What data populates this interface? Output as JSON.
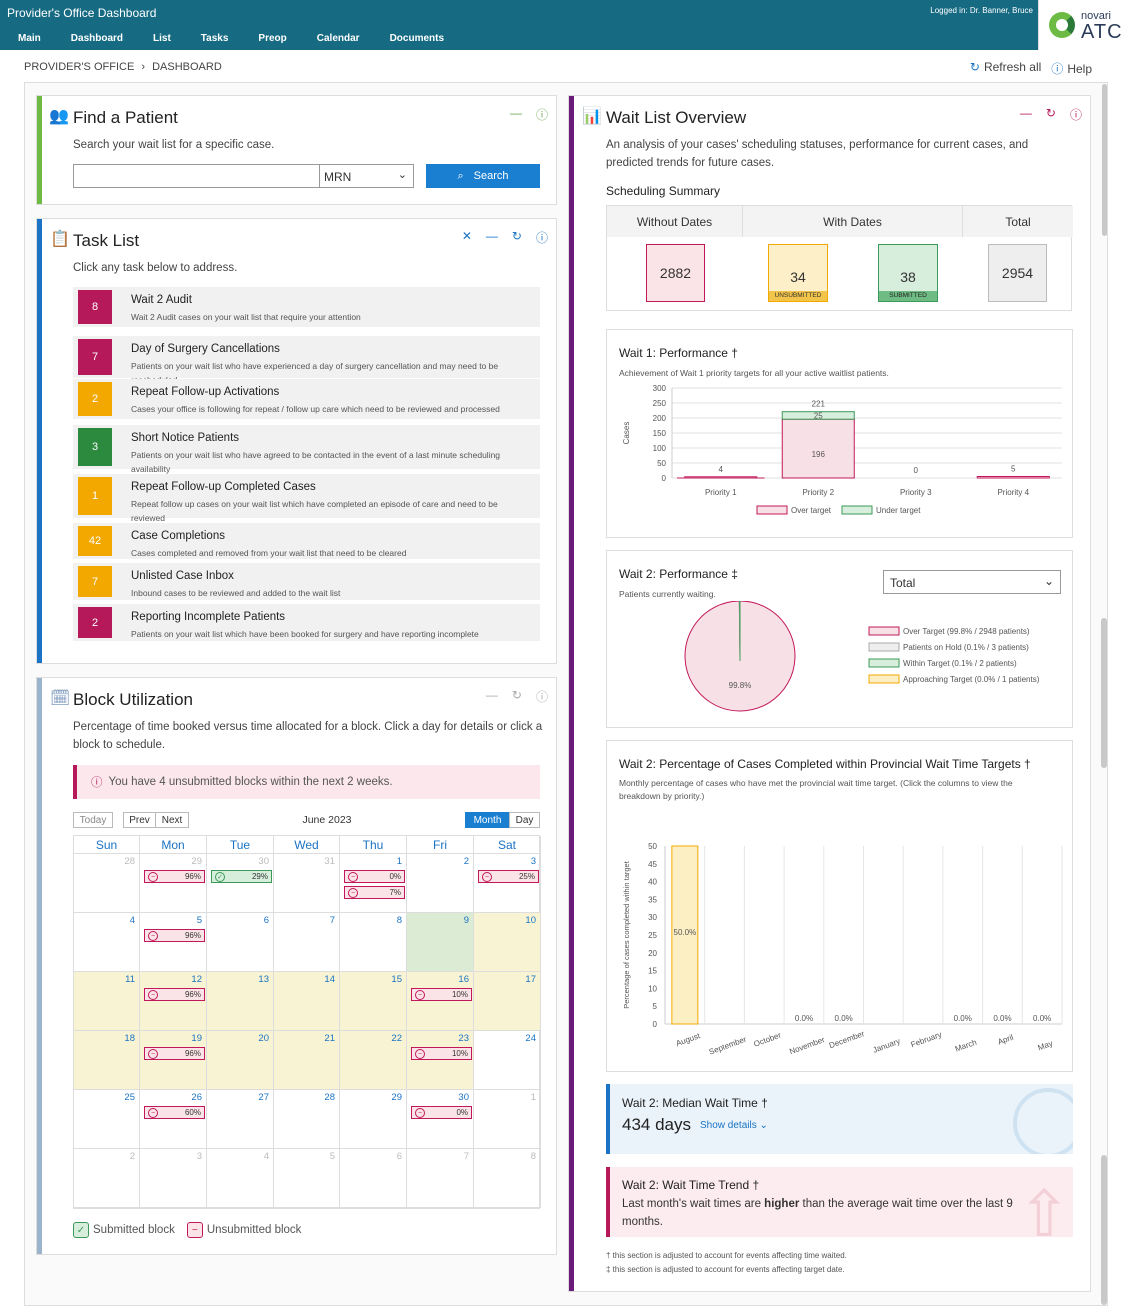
{
  "header": {
    "app_title": "Provider's Office Dashboard",
    "login_text": "Logged in: Dr. Banner, Bruce",
    "nav": [
      "Main",
      "Dashboard",
      "List",
      "Tasks",
      "Preop",
      "Calendar",
      "Documents"
    ],
    "logo_top": "novari",
    "logo_bottom": "ATC"
  },
  "breadcrumb": {
    "office": "PROVIDER'S OFFICE",
    "page": "DASHBOARD"
  },
  "top_actions": {
    "refresh": "Refresh all",
    "help": "Help"
  },
  "find_patient": {
    "title": "Find a Patient",
    "desc": "Search your wait list for a specific case.",
    "search_value": "",
    "id_type": "MRN",
    "search_label": "Search"
  },
  "task_list": {
    "title": "Task List",
    "desc": "Click any task below to address.",
    "tasks": [
      {
        "count": "8",
        "title": "Wait 2 Audit",
        "desc": "Wait 2 Audit cases on your wait list that require your attention",
        "color": "#b5195a"
      },
      {
        "count": "7",
        "title": "Day of Surgery Cancellations",
        "desc": "Patients on your wait list who have experienced a day of surgery cancellation and may need to be rescheduled",
        "color": "#b5195a"
      },
      {
        "count": "2",
        "title": "Repeat Follow-up Activations",
        "desc": "Cases your office is following for repeat / follow up care which need to be reviewed and processed",
        "color": "#f3a800"
      },
      {
        "count": "3",
        "title": "Short Notice Patients",
        "desc": "Patients on your wait list who have agreed to be contacted in the event of a last minute scheduling availability",
        "color": "#2b8a3e"
      },
      {
        "count": "1",
        "title": "Repeat Follow-up Completed Cases",
        "desc": "Repeat follow up cases on your wait list which have completed an episode of care and need to be reviewed",
        "color": "#f3a800"
      },
      {
        "count": "42",
        "title": "Case Completions",
        "desc": "Cases completed and removed from your wait list that need to be cleared",
        "color": "#f3a800"
      },
      {
        "count": "7",
        "title": "Unlisted Case Inbox",
        "desc": "Inbound cases to be reviewed and added to the wait list",
        "color": "#f3a800"
      },
      {
        "count": "2",
        "title": "Reporting Incomplete Patients",
        "desc": "Patients on your wait list which have been booked for surgery and have reporting incomplete",
        "color": "#b5195a"
      }
    ]
  },
  "block_util": {
    "title": "Block Utilization",
    "desc": "Percentage of time booked versus time allocated for a block. Click a day for details or click a block to schedule.",
    "alert": "You have 4 unsubmitted blocks within the next 2 weeks.",
    "today": "Today",
    "prev": "Prev",
    "next": "Next",
    "month_label": "June 2023",
    "view_month": "Month",
    "view_day": "Day",
    "dow": [
      "Sun",
      "Mon",
      "Tue",
      "Wed",
      "Thu",
      "Fri",
      "Sat"
    ],
    "weeks": [
      [
        {
          "d": "28",
          "m": true
        },
        {
          "d": "29",
          "m": true,
          "b": [
            [
              "un",
              "96%"
            ]
          ]
        },
        {
          "d": "30",
          "m": true,
          "b": [
            [
              "su",
              "29%"
            ]
          ]
        },
        {
          "d": "31",
          "m": true
        },
        {
          "d": "1",
          "b": [
            [
              "un",
              "0%"
            ],
            [
              "un",
              "7%"
            ]
          ]
        },
        {
          "d": "2"
        },
        {
          "d": "3",
          "b": [
            [
              "un",
              "25%"
            ]
          ]
        }
      ],
      [
        {
          "d": "4"
        },
        {
          "d": "5",
          "b": [
            [
              "un",
              "96%"
            ]
          ]
        },
        {
          "d": "6"
        },
        {
          "d": "7"
        },
        {
          "d": "8"
        },
        {
          "d": "9",
          "today": true
        },
        {
          "d": "10",
          "hl": true
        }
      ],
      [
        {
          "d": "11",
          "hl": true
        },
        {
          "d": "12",
          "hl": true,
          "b": [
            [
              "un",
              "96%"
            ]
          ]
        },
        {
          "d": "13",
          "hl": true
        },
        {
          "d": "14",
          "hl": true
        },
        {
          "d": "15",
          "hl": true
        },
        {
          "d": "16",
          "hl": true,
          "b": [
            [
              "un",
              "10%"
            ]
          ]
        },
        {
          "d": "17",
          "hl": true
        }
      ],
      [
        {
          "d": "18",
          "hl": true
        },
        {
          "d": "19",
          "hl": true,
          "b": [
            [
              "un",
              "96%"
            ]
          ]
        },
        {
          "d": "20",
          "hl": true
        },
        {
          "d": "21",
          "hl": true
        },
        {
          "d": "22",
          "hl": true
        },
        {
          "d": "23",
          "hl": true,
          "b": [
            [
              "un",
              "10%"
            ]
          ]
        },
        {
          "d": "24"
        }
      ],
      [
        {
          "d": "25"
        },
        {
          "d": "26",
          "b": [
            [
              "un",
              "60%"
            ]
          ]
        },
        {
          "d": "27"
        },
        {
          "d": "28"
        },
        {
          "d": "29"
        },
        {
          "d": "30",
          "b": [
            [
              "un",
              "0%"
            ]
          ]
        },
        {
          "d": "1",
          "m": true
        }
      ],
      [
        {
          "d": "2",
          "m": true
        },
        {
          "d": "3",
          "m": true
        },
        {
          "d": "4",
          "m": true
        },
        {
          "d": "5",
          "m": true
        },
        {
          "d": "6",
          "m": true
        },
        {
          "d": "7",
          "m": true
        },
        {
          "d": "8",
          "m": true
        }
      ]
    ],
    "legend_submitted": "Submitted block",
    "legend_unsubmitted": "Unsubmitted block"
  },
  "wait_list": {
    "title": "Wait List Overview",
    "desc": "An analysis of your cases' scheduling statuses, performance for current cases, and predicted trends for future cases.",
    "summary_title": "Scheduling Summary",
    "col_without": "Without Dates",
    "col_with": "With Dates",
    "col_total": "Total",
    "without_dates": "2882",
    "unsubmitted": "34",
    "unsubmitted_label": "UNSUBMITTED",
    "submitted": "38",
    "submitted_label": "SUBMITTED",
    "total": "2954",
    "perf1_title": "Wait 1: Performance †",
    "perf1_desc": "Achievement of Wait 1 priority targets for all your active waitlist patients.",
    "perf2_title": "Wait 2: Performance ‡",
    "perf2_desc": "Patients currently waiting.",
    "perf2_select": "Total",
    "pct_title": "Wait 2: Percentage of Cases Completed within Provincial Wait Time Targets †",
    "pct_desc": "Monthly percentage of cases who have met the provincial wait time target. (Click the columns to view the breakdown by priority.)",
    "median_title": "Wait 2: Median Wait Time †",
    "median_value": "434 days",
    "median_link": "Show details",
    "trend_title": "Wait 2: Wait Time Trend †",
    "trend_pre": "Last month's wait times are ",
    "trend_bold": "higher",
    "trend_post": " than the average wait time over the last 9 months.",
    "footnote1": "† this section is adjusted to account for events affecting time waited.",
    "footnote2": "‡ this section is adjusted to account for events affecting target date."
  },
  "chart_data": [
    {
      "type": "bar",
      "categories": [
        "Priority 1",
        "Priority 2",
        "Priority 3",
        "Priority 4"
      ],
      "series": [
        {
          "name": "Over target",
          "values": [
            4,
            196,
            0,
            5
          ],
          "color": "#f8e1e6"
        },
        {
          "name": "Under target",
          "values": [
            0,
            25,
            0,
            0
          ],
          "color": "#d7eedd"
        }
      ],
      "totals": [
        "4",
        "221",
        "0",
        "5"
      ],
      "ylabel": "Cases",
      "yticks": [
        "300",
        "250",
        "200",
        "150",
        "100",
        "50",
        "0"
      ],
      "ylim": [
        0,
        300
      ],
      "legend": "bottom"
    },
    {
      "type": "pie",
      "slices": [
        {
          "name": "Over Target (99.8% / 2948 patients)",
          "value": 99.8,
          "color": "#f8e1e6"
        },
        {
          "name": "Patients on Hold (0.1% / 3 patients)",
          "value": 0.1,
          "color": "#eeeeee"
        },
        {
          "name": "Within Target (0.1% / 2 patients)",
          "value": 0.1,
          "color": "#d7eedd"
        },
        {
          "name": "Approaching Target (0.0% / 1 patients)",
          "value": 0.0,
          "color": "#fdefc4"
        }
      ],
      "center_label": "99.8%",
      "legend": "right"
    },
    {
      "type": "bar",
      "categories": [
        "August",
        "September",
        "October",
        "November",
        "December",
        "January",
        "February",
        "March",
        "April",
        "May"
      ],
      "values": [
        50,
        null,
        null,
        0,
        0,
        null,
        null,
        0,
        0,
        0
      ],
      "labels": [
        "50.0%",
        "",
        "",
        "0.0%",
        "0.0%",
        "",
        "",
        "0.0%",
        "0.0%",
        "0.0%"
      ],
      "ylabel": "Percentage of cases completed within target",
      "yticks": [
        "50",
        "45",
        "40",
        "35",
        "30",
        "25",
        "20",
        "15",
        "10",
        "5",
        "0"
      ],
      "ylim": [
        0,
        50
      ]
    }
  ]
}
